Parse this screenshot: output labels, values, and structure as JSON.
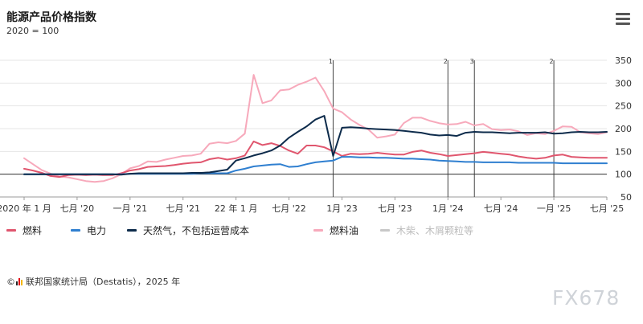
{
  "header": {
    "title": "能源产品价格指数",
    "subtitle": "2020 = 100"
  },
  "menu": {
    "icon": "hamburger-menu-icon"
  },
  "legend": [
    {
      "label": "燃料",
      "color": "#e0566e",
      "active": true
    },
    {
      "label": "电力",
      "color": "#2f7fd0",
      "active": true
    },
    {
      "label": "天然气，不包括运营成本",
      "color": "#0d2b4b",
      "active": true
    },
    {
      "label": "燃料油",
      "color": "#f7a9bb",
      "active": true
    },
    {
      "label": "木柴、木屑颗粒等",
      "color": "#c8c8c8",
      "active": false
    }
  ],
  "source": {
    "copyright": "©",
    "text": "联邦国家统计局（Destatis），2025 年"
  },
  "watermark": "FX678",
  "chart_data": {
    "type": "line",
    "x_tick_labels": [
      "2020 年 1 月",
      "七月 '20",
      "一月 '21",
      "七月 '21",
      "22 年 1 月",
      "七月 '22",
      "1月 '23",
      "七月 '23",
      "1月 '24",
      "七月 '24",
      "一月 '25",
      "七月 '25"
    ],
    "y_ticks": [
      50,
      100,
      150,
      200,
      250,
      300,
      350
    ],
    "ylim": [
      50,
      350
    ],
    "baseline": 100,
    "annotations": [
      {
        "label": "1",
        "month": "2022-12"
      },
      {
        "label": "2",
        "month": "2024-01"
      },
      {
        "label": "3",
        "month": "2024-04"
      },
      {
        "label": "2",
        "month": "2025-01"
      }
    ],
    "x_start": "2020-01",
    "series": [
      {
        "name": "燃料",
        "color": "#e0566e",
        "values": [
          112,
          108,
          103,
          96,
          94,
          98,
          99,
          98,
          99,
          98,
          98,
          102,
          108,
          111,
          116,
          117,
          118,
          120,
          123,
          125,
          126,
          133,
          136,
          132,
          135,
          141,
          172,
          164,
          168,
          162,
          152,
          145,
          163,
          163,
          159,
          150,
          140,
          145,
          144,
          145,
          147,
          145,
          143,
          143,
          149,
          152,
          147,
          144,
          140,
          142,
          144,
          146,
          149,
          147,
          145,
          143,
          139,
          136,
          134,
          136,
          141,
          143,
          138,
          137,
          136,
          136,
          136
        ]
      },
      {
        "name": "电力",
        "color": "#2f7fd0",
        "values": [
          100,
          100,
          100,
          100,
          100,
          100,
          100,
          100,
          100,
          100,
          100,
          100,
          101,
          101,
          101,
          101,
          101,
          101,
          101,
          101,
          102,
          102,
          102,
          102,
          108,
          112,
          117,
          119,
          121,
          122,
          116,
          117,
          122,
          126,
          128,
          130,
          138,
          138,
          137,
          137,
          136,
          136,
          135,
          134,
          134,
          133,
          132,
          130,
          129,
          128,
          127,
          127,
          126,
          126,
          126,
          126,
          125,
          125,
          125,
          125,
          125,
          124,
          124,
          124,
          124,
          124,
          124
        ]
      },
      {
        "name": "天然气，不包括运营成本",
        "color": "#0d2b4b",
        "values": [
          100,
          100,
          100,
          100,
          100,
          100,
          100,
          100,
          100,
          100,
          100,
          99,
          101,
          102,
          102,
          102,
          102,
          102,
          102,
          103,
          103,
          104,
          107,
          110,
          130,
          135,
          141,
          146,
          152,
          163,
          180,
          193,
          205,
          220,
          228,
          140,
          202,
          203,
          202,
          200,
          199,
          198,
          197,
          195,
          193,
          191,
          187,
          185,
          186,
          184,
          191,
          193,
          192,
          192,
          191,
          190,
          191,
          191,
          191,
          192,
          189,
          190,
          192,
          193,
          192,
          192,
          193
        ]
      },
      {
        "name": "燃料油",
        "color": "#f7a9bb",
        "values": [
          135,
          122,
          109,
          101,
          95,
          93,
          89,
          85,
          83,
          85,
          91,
          100,
          113,
          118,
          128,
          127,
          132,
          136,
          140,
          141,
          145,
          167,
          170,
          168,
          173,
          189,
          318,
          256,
          262,
          284,
          286,
          296,
          303,
          312,
          282,
          244,
          236,
          220,
          208,
          198,
          180,
          183,
          187,
          212,
          224,
          224,
          217,
          212,
          209,
          210,
          215,
          207,
          210,
          199,
          197,
          198,
          194,
          186,
          190,
          188,
          195,
          205,
          204,
          192,
          190,
          188,
          192
        ]
      },
      {
        "name": "木柴、木屑颗粒等",
        "color": "#c8c8c8",
        "values": []
      }
    ]
  }
}
